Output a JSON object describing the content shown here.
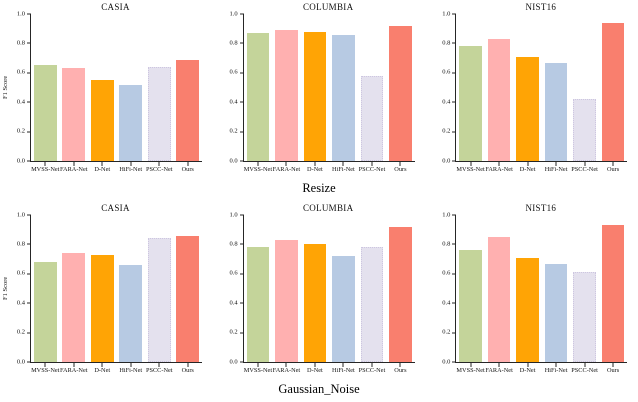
{
  "figure": {
    "background": "#ffffff",
    "axis_color": "#262626",
    "text_color": "#111111"
  },
  "captions": {
    "row1": "Resize",
    "row2": "Gaussian_Noise"
  },
  "methods": [
    "MVSS-Net",
    "FARA-Net",
    "D-Net",
    "HiFi-Net",
    "PSCC-Net",
    "Ours"
  ],
  "bar_colors": [
    "#c4d49a",
    "#ffb0b0",
    "#ffa405",
    "#b7cae3",
    "#e4e1ee",
    "#f97f6e"
  ],
  "bar_edge_dotted": [
    false,
    false,
    false,
    false,
    true,
    false
  ],
  "chart_data": [
    {
      "type": "bar",
      "title": "CASIA",
      "group": "Resize",
      "categories": [
        "MVSS-Net",
        "FARA-Net",
        "D-Net",
        "HiFi-Net",
        "PSCC-Net",
        "Ours"
      ],
      "values": [
        0.65,
        0.63,
        0.55,
        0.52,
        0.64,
        0.69
      ],
      "xlabel": "",
      "ylabel": "F1 Score",
      "ylim": [
        0,
        1
      ],
      "yticks": [
        0.0,
        0.2,
        0.4,
        0.6,
        0.8,
        1.0
      ],
      "grid": false,
      "legend": "none"
    },
    {
      "type": "bar",
      "title": "COLUMBIA",
      "group": "Resize",
      "categories": [
        "MVSS-Net",
        "FARA-Net",
        "D-Net",
        "HiFi-Net",
        "PSCC-Net",
        "Ours"
      ],
      "values": [
        0.87,
        0.89,
        0.88,
        0.86,
        0.58,
        0.92
      ],
      "xlabel": "",
      "ylabel": "",
      "ylim": [
        0,
        1
      ],
      "yticks": [
        0.0,
        0.2,
        0.4,
        0.6,
        0.8,
        1.0
      ],
      "grid": false,
      "legend": "none"
    },
    {
      "type": "bar",
      "title": "NIST16",
      "group": "Resize",
      "categories": [
        "MVSS-Net",
        "FARA-Net",
        "D-Net",
        "HiFi-Net",
        "PSCC-Net",
        "Ours"
      ],
      "values": [
        0.78,
        0.83,
        0.71,
        0.67,
        0.42,
        0.94
      ],
      "xlabel": "",
      "ylabel": "",
      "ylim": [
        0,
        1
      ],
      "yticks": [
        0.0,
        0.2,
        0.4,
        0.6,
        0.8,
        1.0
      ],
      "grid": false,
      "legend": "none"
    },
    {
      "type": "bar",
      "title": "CASIA",
      "group": "Gaussian_Noise",
      "categories": [
        "MVSS-Net",
        "FARA-Net",
        "D-Net",
        "HiFi-Net",
        "PSCC-Net",
        "Ours"
      ],
      "values": [
        0.68,
        0.74,
        0.73,
        0.66,
        0.845,
        0.855
      ],
      "xlabel": "",
      "ylabel": "F1 Score",
      "ylim": [
        0,
        1
      ],
      "yticks": [
        0.0,
        0.2,
        0.4,
        0.6,
        0.8,
        1.0
      ],
      "grid": false,
      "legend": "none"
    },
    {
      "type": "bar",
      "title": "COLUMBIA",
      "group": "Gaussian_Noise",
      "categories": [
        "MVSS-Net",
        "FARA-Net",
        "D-Net",
        "HiFi-Net",
        "PSCC-Net",
        "Ours"
      ],
      "values": [
        0.78,
        0.83,
        0.8,
        0.72,
        0.78,
        0.92
      ],
      "xlabel": "",
      "ylabel": "",
      "ylim": [
        0,
        1
      ],
      "yticks": [
        0.0,
        0.2,
        0.4,
        0.6,
        0.8,
        1.0
      ],
      "grid": false,
      "legend": "none"
    },
    {
      "type": "bar",
      "title": "NIST16",
      "group": "Gaussian_Noise",
      "categories": [
        "MVSS-Net",
        "FARA-Net",
        "D-Net",
        "HiFi-Net",
        "PSCC-Net",
        "Ours"
      ],
      "values": [
        0.76,
        0.85,
        0.71,
        0.67,
        0.61,
        0.93
      ],
      "xlabel": "",
      "ylabel": "",
      "ylim": [
        0,
        1
      ],
      "yticks": [
        0.0,
        0.2,
        0.4,
        0.6,
        0.8,
        1.0
      ],
      "grid": false,
      "legend": "none"
    }
  ]
}
